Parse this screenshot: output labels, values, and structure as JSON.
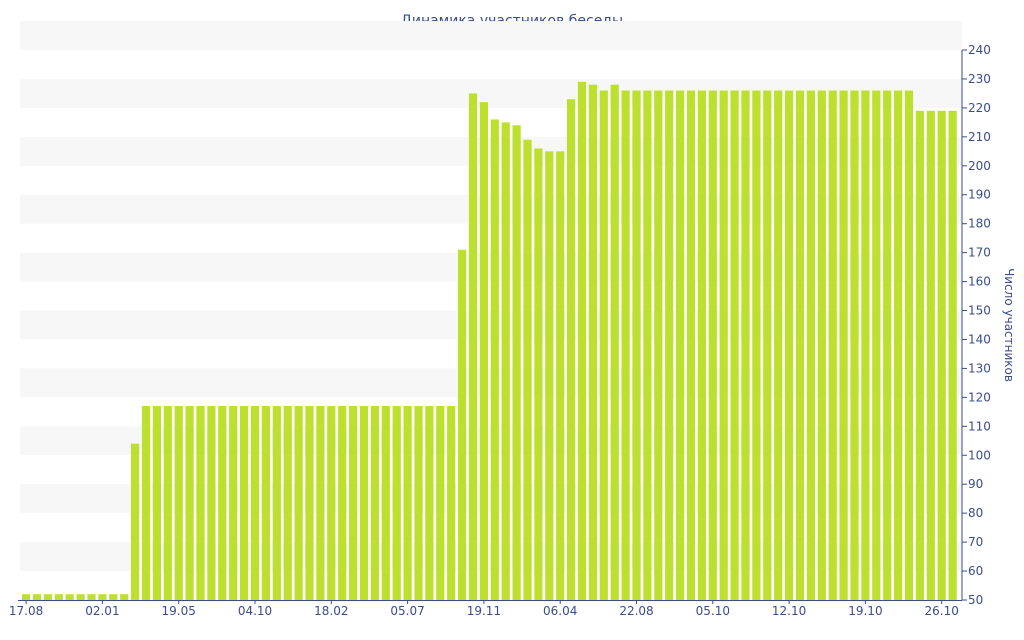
{
  "chart_data": {
    "type": "bar",
    "title": "Динамика участников беседы",
    "xlabel": "",
    "ylabel": "Число участников",
    "ylim": [
      50,
      240
    ],
    "y_ticks": [
      50,
      60,
      70,
      80,
      90,
      100,
      110,
      120,
      130,
      140,
      150,
      160,
      170,
      180,
      190,
      200,
      210,
      220,
      230,
      240
    ],
    "y_axis_position": "right",
    "grid": "alternating horizontal bands",
    "x_tick_labels": [
      "17.08",
      "02.01",
      "19.05",
      "04.10",
      "18.02",
      "05.07",
      "19.11",
      "06.04",
      "22.08",
      "05.10",
      "12.10",
      "19.10",
      "26.10"
    ],
    "x_tick_bar_index": [
      0,
      7,
      14,
      21,
      28,
      35,
      42,
      49,
      56,
      63,
      70,
      77,
      84
    ],
    "bar_color": "#bddf2e",
    "values": [
      52,
      52,
      52,
      52,
      52,
      52,
      52,
      52,
      52,
      52,
      104,
      117,
      117,
      117,
      117,
      117,
      117,
      117,
      117,
      117,
      117,
      117,
      117,
      117,
      117,
      117,
      117,
      117,
      117,
      117,
      117,
      117,
      117,
      117,
      117,
      117,
      117,
      117,
      117,
      117,
      171,
      225,
      222,
      216,
      215,
      214,
      209,
      206,
      205,
      205,
      223,
      229,
      228,
      226,
      228,
      226,
      226,
      226,
      226,
      226,
      226,
      226,
      226,
      226,
      226,
      226,
      226,
      226,
      226,
      226,
      226,
      226,
      226,
      226,
      226,
      226,
      226,
      226,
      226,
      226,
      226,
      226,
      219,
      219,
      219,
      219
    ]
  }
}
